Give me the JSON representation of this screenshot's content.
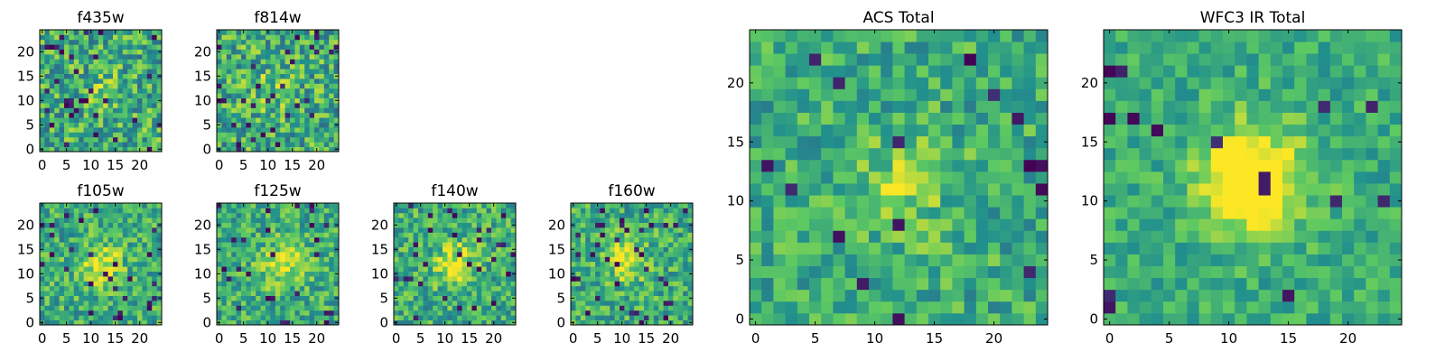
{
  "figure": {
    "background": "#ffffff"
  },
  "colormap": {
    "name": "viridis",
    "stops": [
      "#440154",
      "#3b528b",
      "#21908d",
      "#5dc962",
      "#fde725"
    ]
  },
  "chart_data": [
    {
      "id": "f435w",
      "type": "heatmap",
      "title": "f435w",
      "grid": false,
      "xlim": [
        -0.5,
        24.5
      ],
      "ylim": [
        -0.5,
        24.5
      ],
      "xticks": [
        0,
        5,
        10,
        15,
        20
      ],
      "yticks": [
        0,
        5,
        10,
        15,
        20
      ],
      "size": [
        25,
        25
      ],
      "seed": 11,
      "peak": [
        12,
        12
      ],
      "peak_strength": 0.1,
      "noise": 0.55,
      "low_fraction": 0.05
    },
    {
      "id": "f814w",
      "type": "heatmap",
      "title": "f814w",
      "grid": false,
      "xlim": [
        -0.5,
        24.5
      ],
      "ylim": [
        -0.5,
        24.5
      ],
      "xticks": [
        0,
        5,
        10,
        15,
        20
      ],
      "yticks": [
        0,
        5,
        10,
        15,
        20
      ],
      "size": [
        25,
        25
      ],
      "seed": 23,
      "peak": [
        11,
        12
      ],
      "peak_strength": 0.15,
      "noise": 0.55,
      "low_fraction": 0.05
    },
    {
      "id": "f105w",
      "type": "heatmap",
      "title": "f105w",
      "grid": false,
      "xlim": [
        -0.5,
        24.5
      ],
      "ylim": [
        -0.5,
        24.5
      ],
      "xticks": [
        0,
        5,
        10,
        15,
        20
      ],
      "yticks": [
        0,
        5,
        10,
        15,
        20
      ],
      "size": [
        25,
        25
      ],
      "seed": 37,
      "peak": [
        12,
        12
      ],
      "peak_strength": 0.35,
      "noise": 0.45,
      "low_fraction": 0.03
    },
    {
      "id": "f125w",
      "type": "heatmap",
      "title": "f125w",
      "grid": false,
      "xlim": [
        -0.5,
        24.5
      ],
      "ylim": [
        -0.5,
        24.5
      ],
      "xticks": [
        0,
        5,
        10,
        15,
        20
      ],
      "yticks": [
        0,
        5,
        10,
        15,
        20
      ],
      "size": [
        25,
        25
      ],
      "seed": 41,
      "peak": [
        13,
        12
      ],
      "peak_strength": 0.35,
      "noise": 0.45,
      "low_fraction": 0.04
    },
    {
      "id": "f140w",
      "type": "heatmap",
      "title": "f140w",
      "grid": false,
      "xlim": [
        -0.5,
        24.5
      ],
      "ylim": [
        -0.5,
        24.5
      ],
      "xticks": [
        0,
        5,
        10,
        15,
        20
      ],
      "yticks": [
        0,
        5,
        10,
        15,
        20
      ],
      "size": [
        25,
        25
      ],
      "seed": 53,
      "peak": [
        12,
        12
      ],
      "peak_strength": 0.35,
      "noise": 0.45,
      "low_fraction": 0.04
    },
    {
      "id": "f160w",
      "type": "heatmap",
      "title": "f160w",
      "grid": false,
      "xlim": [
        -0.5,
        24.5
      ],
      "ylim": [
        -0.5,
        24.5
      ],
      "xticks": [
        0,
        5,
        10,
        15,
        20
      ],
      "yticks": [
        0,
        5,
        10,
        15,
        20
      ],
      "size": [
        25,
        25
      ],
      "seed": 67,
      "peak": [
        11,
        13
      ],
      "peak_strength": 0.35,
      "noise": 0.45,
      "low_fraction": 0.05
    },
    {
      "id": "acs_total",
      "type": "heatmap",
      "title": "ACS Total",
      "grid": false,
      "xlim": [
        -0.5,
        24.5
      ],
      "ylim": [
        -0.5,
        24.5
      ],
      "xticks": [
        0,
        5,
        10,
        15,
        20
      ],
      "yticks": [
        0,
        5,
        10,
        15,
        20
      ],
      "size": [
        25,
        25
      ],
      "seed": 71,
      "peak": [
        12,
        11
      ],
      "peak_strength": 0.2,
      "noise": 0.4,
      "low_fraction": 0.02
    },
    {
      "id": "wfc3_ir_total",
      "type": "heatmap",
      "title": "WFC3 IR Total",
      "grid": false,
      "xlim": [
        -0.5,
        24.5
      ],
      "ylim": [
        -0.5,
        24.5
      ],
      "xticks": [
        0,
        5,
        10,
        15,
        20
      ],
      "yticks": [
        0,
        5,
        10,
        15,
        20
      ],
      "size": [
        25,
        25
      ],
      "seed": 83,
      "peak": [
        12,
        12
      ],
      "peak_strength": 0.6,
      "noise": 0.3,
      "low_fraction": 0.02
    }
  ]
}
